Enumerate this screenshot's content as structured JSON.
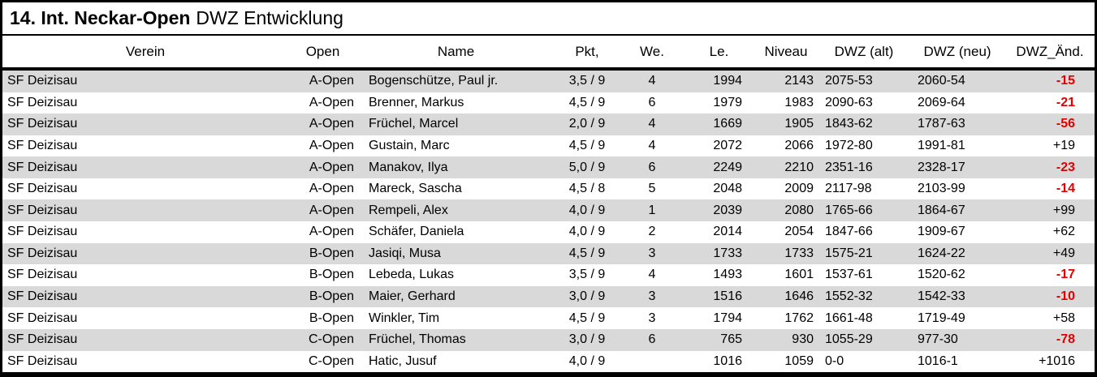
{
  "title": {
    "bold": "14. Int. Neckar-Open",
    "regular": "DWZ Entwicklung"
  },
  "columns": [
    {
      "key": "verein",
      "label": "Verein"
    },
    {
      "key": "open",
      "label": "Open"
    },
    {
      "key": "name",
      "label": "Name"
    },
    {
      "key": "pkt",
      "label": "Pkt,"
    },
    {
      "key": "we",
      "label": "We."
    },
    {
      "key": "le",
      "label": "Le."
    },
    {
      "key": "niveau",
      "label": "Niveau"
    },
    {
      "key": "dwz_alt",
      "label": "DWZ (alt)"
    },
    {
      "key": "dwz_neu",
      "label": "DWZ (neu)"
    },
    {
      "key": "dwz_aend",
      "label": "DWZ_Änd."
    }
  ],
  "rows": [
    {
      "verein": "SF Deizisau",
      "open": "A-Open",
      "name": "Bogenschütze, Paul jr.",
      "pkt": "3,5 / 9",
      "we": "4",
      "le": "1994",
      "niveau": "2143",
      "dwz_alt": "2075-53",
      "dwz_neu": "2060-54",
      "dwz_aend": "-15",
      "trend": "negative"
    },
    {
      "verein": "SF Deizisau",
      "open": "A-Open",
      "name": "Brenner, Markus",
      "pkt": "4,5 / 9",
      "we": "6",
      "le": "1979",
      "niveau": "1983",
      "dwz_alt": "2090-63",
      "dwz_neu": "2069-64",
      "dwz_aend": "-21",
      "trend": "negative"
    },
    {
      "verein": "SF Deizisau",
      "open": "A-Open",
      "name": "Früchel, Marcel",
      "pkt": "2,0 / 9",
      "we": "4",
      "le": "1669",
      "niveau": "1905",
      "dwz_alt": "1843-62",
      "dwz_neu": "1787-63",
      "dwz_aend": "-56",
      "trend": "negative"
    },
    {
      "verein": "SF Deizisau",
      "open": "A-Open",
      "name": "Gustain, Marc",
      "pkt": "4,5 / 9",
      "we": "4",
      "le": "2072",
      "niveau": "2066",
      "dwz_alt": "1972-80",
      "dwz_neu": "1991-81",
      "dwz_aend": "+19",
      "trend": "positive"
    },
    {
      "verein": "SF Deizisau",
      "open": "A-Open",
      "name": "Manakov, Ilya",
      "pkt": "5,0 / 9",
      "we": "6",
      "le": "2249",
      "niveau": "2210",
      "dwz_alt": "2351-16",
      "dwz_neu": "2328-17",
      "dwz_aend": "-23",
      "trend": "negative"
    },
    {
      "verein": "SF Deizisau",
      "open": "A-Open",
      "name": "Mareck, Sascha",
      "pkt": "4,5 / 8",
      "we": "5",
      "le": "2048",
      "niveau": "2009",
      "dwz_alt": "2117-98",
      "dwz_neu": "2103-99",
      "dwz_aend": "-14",
      "trend": "negative"
    },
    {
      "verein": "SF Deizisau",
      "open": "A-Open",
      "name": "Rempeli, Alex",
      "pkt": "4,0 / 9",
      "we": "1",
      "le": "2039",
      "niveau": "2080",
      "dwz_alt": "1765-66",
      "dwz_neu": "1864-67",
      "dwz_aend": "+99",
      "trend": "positive"
    },
    {
      "verein": "SF Deizisau",
      "open": "A-Open",
      "name": "Schäfer, Daniela",
      "pkt": "4,0 / 9",
      "we": "2",
      "le": "2014",
      "niveau": "2054",
      "dwz_alt": "1847-66",
      "dwz_neu": "1909-67",
      "dwz_aend": "+62",
      "trend": "positive"
    },
    {
      "verein": "SF Deizisau",
      "open": "B-Open",
      "name": "Jasiqi, Musa",
      "pkt": "4,5 / 9",
      "we": "3",
      "le": "1733",
      "niveau": "1733",
      "dwz_alt": "1575-21",
      "dwz_neu": "1624-22",
      "dwz_aend": "+49",
      "trend": "positive"
    },
    {
      "verein": "SF Deizisau",
      "open": "B-Open",
      "name": "Lebeda, Lukas",
      "pkt": "3,5 / 9",
      "we": "4",
      "le": "1493",
      "niveau": "1601",
      "dwz_alt": "1537-61",
      "dwz_neu": "1520-62",
      "dwz_aend": "-17",
      "trend": "negative"
    },
    {
      "verein": "SF Deizisau",
      "open": "B-Open",
      "name": "Maier, Gerhard",
      "pkt": "3,0 / 9",
      "we": "3",
      "le": "1516",
      "niveau": "1646",
      "dwz_alt": "1552-32",
      "dwz_neu": "1542-33",
      "dwz_aend": "-10",
      "trend": "negative"
    },
    {
      "verein": "SF Deizisau",
      "open": "B-Open",
      "name": "Winkler, Tim",
      "pkt": "4,5 / 9",
      "we": "3",
      "le": "1794",
      "niveau": "1762",
      "dwz_alt": "1661-48",
      "dwz_neu": "1719-49",
      "dwz_aend": "+58",
      "trend": "positive"
    },
    {
      "verein": "SF Deizisau",
      "open": "C-Open",
      "name": "Früchel, Thomas",
      "pkt": "3,0 / 9",
      "we": "6",
      "le": "765",
      "niveau": "930",
      "dwz_alt": "1055-29",
      "dwz_neu": "977-30",
      "dwz_aend": "-78",
      "trend": "negative"
    },
    {
      "verein": "SF Deizisau",
      "open": "C-Open",
      "name": "Hatic, Jusuf",
      "pkt": "4,0 / 9",
      "we": "",
      "le": "1016",
      "niveau": "1059",
      "dwz_alt": "0-0",
      "dwz_neu": "1016-1",
      "dwz_aend": "+1016",
      "trend": "positive"
    }
  ],
  "colors": {
    "negative_change": "#e10000",
    "positive_change": "#000000",
    "row_alt_bg": "#d9d9d9",
    "row_bg": "#ffffff"
  }
}
